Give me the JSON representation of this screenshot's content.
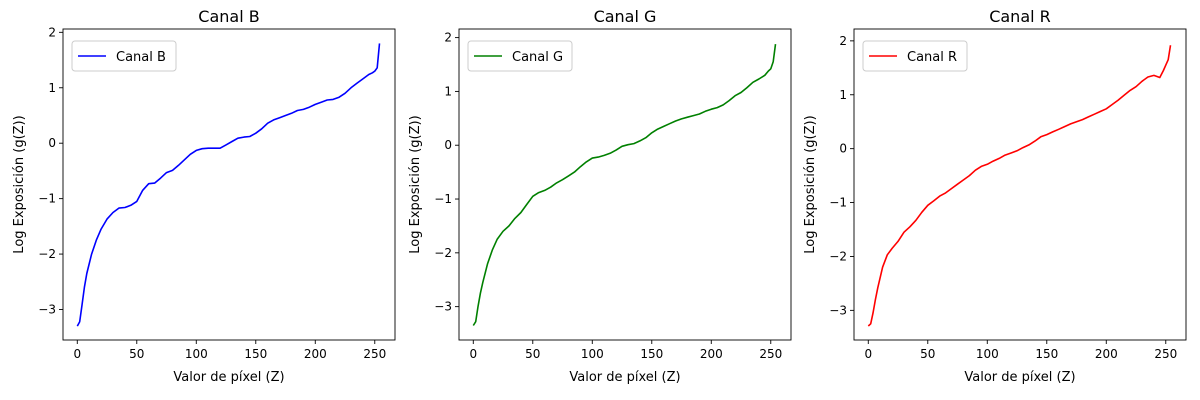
{
  "chart_data": [
    {
      "type": "line",
      "title": "Canal B",
      "xlabel": "Valor de píxel (Z)",
      "ylabel": "Log Exposición (g(Z))",
      "xlim": [
        -12,
        267
      ],
      "ylim": [
        -3.55,
        2.06
      ],
      "xticks": [
        0,
        50,
        100,
        150,
        200,
        250
      ],
      "yticks": [
        -3,
        -2,
        -1,
        0,
        1,
        2
      ],
      "grid": false,
      "legend": "upper-left",
      "series": [
        {
          "name": "Canal B",
          "color": "#0000ff",
          "x": [
            0,
            2,
            4,
            6,
            8,
            12,
            16,
            20,
            25,
            30,
            35,
            40,
            45,
            50,
            55,
            60,
            65,
            70,
            75,
            80,
            85,
            90,
            95,
            100,
            105,
            110,
            115,
            120,
            125,
            130,
            135,
            140,
            145,
            150,
            155,
            160,
            165,
            170,
            175,
            180,
            185,
            190,
            195,
            200,
            205,
            210,
            215,
            220,
            225,
            230,
            235,
            240,
            245,
            248,
            250,
            252,
            254
          ],
          "y": [
            -3.3,
            -3.22,
            -2.92,
            -2.6,
            -2.35,
            -2.0,
            -1.75,
            -1.55,
            -1.37,
            -1.25,
            -1.17,
            -1.16,
            -1.12,
            -1.05,
            -0.85,
            -0.73,
            -0.72,
            -0.63,
            -0.53,
            -0.49,
            -0.4,
            -0.3,
            -0.2,
            -0.13,
            -0.1,
            -0.09,
            -0.09,
            -0.09,
            -0.03,
            0.03,
            0.09,
            0.11,
            0.12,
            0.18,
            0.26,
            0.36,
            0.42,
            0.46,
            0.5,
            0.54,
            0.59,
            0.61,
            0.65,
            0.7,
            0.74,
            0.78,
            0.79,
            0.83,
            0.9,
            1.0,
            1.08,
            1.16,
            1.24,
            1.27,
            1.3,
            1.36,
            1.8
          ]
        }
      ]
    },
    {
      "type": "line",
      "title": "Canal G",
      "xlabel": "Valor de píxel (Z)",
      "ylabel": "Log Exposición (g(Z))",
      "xlim": [
        -12,
        267
      ],
      "ylim": [
        -3.62,
        2.16
      ],
      "xticks": [
        0,
        50,
        100,
        150,
        200,
        250
      ],
      "yticks": [
        -3,
        -2,
        -1,
        0,
        1,
        2
      ],
      "grid": false,
      "legend": "upper-left",
      "series": [
        {
          "name": "Canal G",
          "color": "#008000",
          "x": [
            0,
            2,
            4,
            6,
            8,
            12,
            16,
            20,
            25,
            30,
            35,
            40,
            45,
            50,
            55,
            60,
            65,
            70,
            75,
            80,
            85,
            90,
            95,
            100,
            105,
            110,
            115,
            120,
            125,
            130,
            135,
            140,
            145,
            150,
            155,
            160,
            165,
            170,
            175,
            180,
            185,
            190,
            195,
            200,
            205,
            210,
            215,
            220,
            225,
            230,
            235,
            240,
            245,
            248,
            250,
            252,
            254
          ],
          "y": [
            -3.35,
            -3.28,
            -3.0,
            -2.75,
            -2.55,
            -2.2,
            -1.95,
            -1.75,
            -1.6,
            -1.5,
            -1.36,
            -1.25,
            -1.1,
            -0.95,
            -0.88,
            -0.84,
            -0.78,
            -0.7,
            -0.64,
            -0.57,
            -0.5,
            -0.4,
            -0.31,
            -0.24,
            -0.22,
            -0.19,
            -0.15,
            -0.09,
            -0.02,
            0.01,
            0.03,
            0.08,
            0.14,
            0.23,
            0.3,
            0.35,
            0.4,
            0.45,
            0.49,
            0.52,
            0.55,
            0.58,
            0.63,
            0.67,
            0.7,
            0.75,
            0.83,
            0.92,
            0.98,
            1.07,
            1.17,
            1.23,
            1.3,
            1.38,
            1.42,
            1.55,
            1.88
          ]
        }
      ]
    },
    {
      "type": "line",
      "title": "Canal R",
      "xlabel": "Valor de píxel (Z)",
      "ylabel": "Log Exposición (g(Z))",
      "xlim": [
        -12,
        267
      ],
      "ylim": [
        -3.55,
        2.22
      ],
      "xticks": [
        0,
        50,
        100,
        150,
        200,
        250
      ],
      "yticks": [
        -3,
        -2,
        -1,
        0,
        1,
        2
      ],
      "grid": false,
      "legend": "upper-left",
      "series": [
        {
          "name": "Canal R",
          "color": "#ff0000",
          "x": [
            0,
            2,
            4,
            6,
            8,
            12,
            16,
            20,
            25,
            30,
            35,
            40,
            45,
            50,
            55,
            60,
            65,
            70,
            75,
            80,
            85,
            90,
            95,
            100,
            105,
            110,
            115,
            120,
            125,
            130,
            135,
            140,
            145,
            150,
            155,
            160,
            165,
            170,
            175,
            180,
            185,
            190,
            195,
            200,
            205,
            210,
            215,
            220,
            225,
            230,
            235,
            240,
            245,
            248,
            250,
            252,
            254
          ],
          "y": [
            -3.29,
            -3.25,
            -3.05,
            -2.8,
            -2.58,
            -2.2,
            -1.97,
            -1.85,
            -1.72,
            -1.55,
            -1.45,
            -1.33,
            -1.18,
            -1.05,
            -0.97,
            -0.88,
            -0.82,
            -0.74,
            -0.66,
            -0.58,
            -0.5,
            -0.4,
            -0.33,
            -0.29,
            -0.23,
            -0.18,
            -0.12,
            -0.08,
            -0.04,
            0.02,
            0.07,
            0.14,
            0.22,
            0.26,
            0.31,
            0.36,
            0.41,
            0.46,
            0.5,
            0.54,
            0.59,
            0.64,
            0.69,
            0.74,
            0.82,
            0.9,
            0.99,
            1.08,
            1.15,
            1.25,
            1.33,
            1.36,
            1.32,
            1.45,
            1.55,
            1.65,
            1.92
          ]
        }
      ]
    }
  ]
}
